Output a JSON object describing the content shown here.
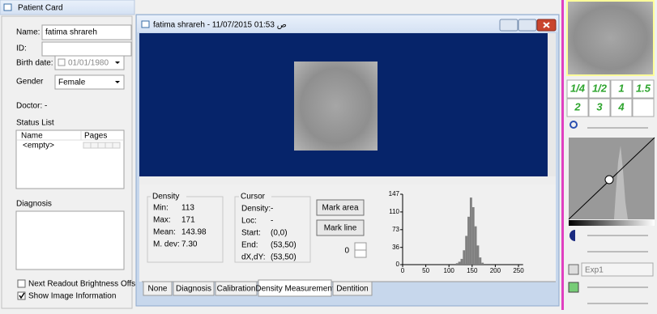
{
  "patient_card": {
    "title": "Patient Card",
    "name_label": "Name:",
    "name": "fatima shrareh",
    "id_label": "ID:",
    "birth_label": "Birth date:",
    "birth_date": "01/01/1980",
    "gender_label": "Gender",
    "gender": "Female",
    "doctor": "Doctor: -",
    "status_list": "Status List",
    "columns": [
      "Name",
      "Pages"
    ],
    "status_empty": "<empty>",
    "diagnosis": "Diagnosis",
    "checkboxes": [
      "Next Readout Brightness Offset",
      "Show Image Information"
    ]
  },
  "viewer": {
    "title": "fatima shrareh - 11/07/2015 01:53 ص",
    "density": {
      "title": "Density",
      "rows": [
        [
          "Min:",
          "113"
        ],
        [
          "Max:",
          "171"
        ],
        [
          "Mean:",
          "143.98"
        ],
        [
          "M. dev:",
          "7.30"
        ]
      ]
    },
    "cursor": {
      "title": "Cursor",
      "rows": [
        [
          "Density:",
          "-"
        ],
        [
          "Loc:",
          "-"
        ],
        [
          "Start:",
          "(0,0)"
        ],
        [
          "End:",
          "(53,50)"
        ],
        [
          "dX,dY:",
          "(53,50)"
        ]
      ]
    },
    "buttons": [
      "Mark area",
      "Mark line"
    ],
    "spin_value": "0",
    "tabs": [
      "None",
      "Diagnosis",
      "Calibration",
      "Density Measurement",
      "Dentition"
    ]
  },
  "chart_data": {
    "type": "histogram",
    "bins": [
      115,
      120,
      125,
      130,
      135,
      140,
      145,
      150,
      155,
      160,
      165,
      170,
      175
    ],
    "values": [
      3,
      6,
      12,
      30,
      60,
      100,
      140,
      120,
      80,
      40,
      15,
      4
    ],
    "color": "#808080",
    "xlim": [
      0,
      260
    ],
    "xticks": [
      0,
      50,
      100,
      150,
      200,
      250
    ],
    "ylim": [
      0,
      147
    ],
    "yticks": [
      0,
      36,
      73,
      110,
      147
    ]
  },
  "side_panel": {
    "zoom": [
      "1/4",
      "1/2",
      "1",
      "1.5",
      "2",
      "3",
      "4"
    ],
    "exposure": "Exp1"
  }
}
